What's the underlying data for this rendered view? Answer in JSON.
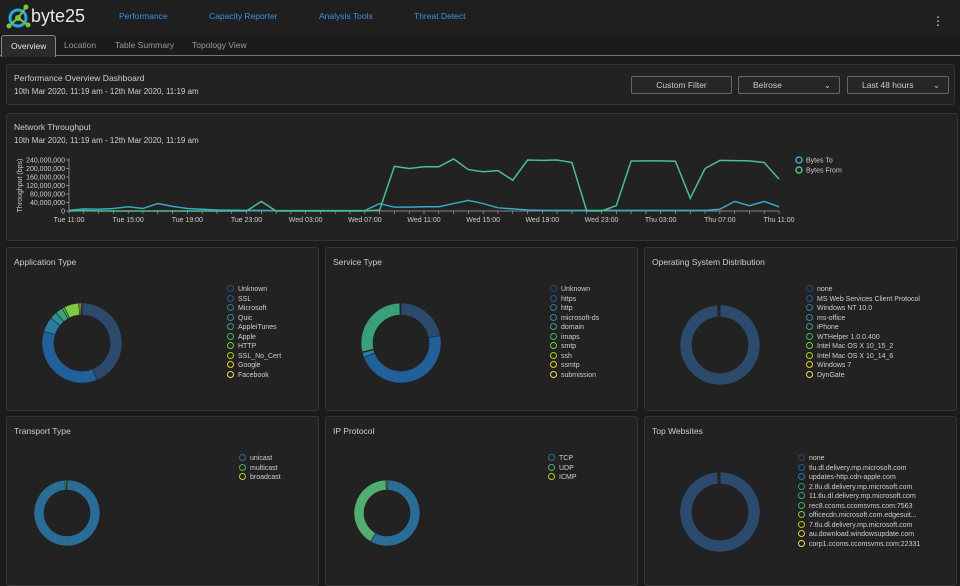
{
  "app": {
    "name": "byte25",
    "nav": [
      "Performance",
      "Capacity Reporter",
      "Analysis Tools",
      "Threat Detect"
    ],
    "menu_icon": "kebab-menu-icon"
  },
  "tabs": [
    "Overview",
    "Location",
    "Table Summary",
    "Topology View"
  ],
  "dashboard": {
    "title": "Performance Overview Dashboard",
    "range": "10th Mar 2020, 11:19 am - 12th Mar 2020, 11:19 am",
    "custom_filter": "Custom Filter",
    "location": "Belrose",
    "period": "Last 48 hours"
  },
  "colors": [
    "#2c4a6b",
    "#22609b",
    "#2a7aa2",
    "#2b9094",
    "#3aa07a",
    "#48b25a",
    "#7cc943",
    "#b6cc2a",
    "#e4d21e",
    "#f0dc5a"
  ],
  "chart_data": [
    {
      "type": "line",
      "title": "Network Throughput",
      "subtitle": "10th Mar 2020, 11:19 am - 12th Mar 2020, 11:19 am",
      "ylabel": "Throughput (bps)",
      "ylim": [
        0,
        240000000
      ],
      "yticks": [
        "0",
        "40,000,000",
        "80,000,000",
        "120,000,000",
        "160,000,000",
        "200,000,000",
        "240,000,000"
      ],
      "xticks": [
        "Tue 11:00",
        "Tue 15:00",
        "Tue 19:00",
        "Tue 23:00",
        "Wed 03:00",
        "Wed 07:00",
        "Wed 11:00",
        "Wed 15:00",
        "Wed 19:00",
        "Wed 23:00",
        "Thu 03:00",
        "Thu 07:00",
        "Thu 11:00"
      ],
      "legend_placement": "right",
      "series": [
        {
          "name": "Bytes To",
          "color": "#3aa6c8",
          "values": [
            3,
            10,
            8,
            12,
            20,
            12,
            35,
            22,
            12,
            8,
            5,
            4,
            3,
            3,
            2,
            2,
            2,
            2,
            2,
            2,
            2,
            35,
            18,
            18,
            20,
            20,
            35,
            50,
            35,
            15,
            10,
            5,
            3,
            3,
            3,
            3,
            3,
            3,
            3,
            3,
            3,
            3,
            3,
            3,
            8,
            45,
            25,
            45,
            20
          ]
        },
        {
          "name": "Bytes From",
          "color": "#4cc08a",
          "values": [
            0,
            2,
            0,
            0,
            0,
            0,
            0,
            0,
            0,
            0,
            0,
            0,
            0,
            45,
            0,
            0,
            0,
            0,
            0,
            0,
            0,
            5,
            210,
            200,
            208,
            208,
            245,
            195,
            185,
            190,
            145,
            240,
            238,
            240,
            228,
            0,
            0,
            25,
            235,
            236,
            236,
            234,
            60,
            200,
            238,
            237,
            236,
            228,
            150
          ]
        }
      ],
      "unit_scale": "values in millions of bps"
    },
    {
      "type": "pie",
      "title": "Application Type",
      "labels": [
        "Unknown",
        "SSL",
        "Microsoft",
        "Quic",
        "AppleiTunes",
        "Apple",
        "HTTP",
        "SSL_No_Cert",
        "Google",
        "Facebook"
      ],
      "values": [
        44,
        36,
        6,
        3,
        3,
        1,
        6,
        0.5,
        0.5,
        0.3
      ]
    },
    {
      "type": "pie",
      "title": "Service Type",
      "labels": [
        "Unknown",
        "https",
        "http",
        "microsoft-ds",
        "domain",
        "imaps",
        "smtp",
        "ssh",
        "ssmtp",
        "submission"
      ],
      "values": [
        22,
        47,
        2,
        0.3,
        28,
        0.1,
        0.1,
        0.1,
        0.1,
        0.1
      ]
    },
    {
      "type": "pie",
      "title": "Operating System Distribution",
      "labels": [
        "none",
        "MS Web Services Client Protocol",
        "Windows NT 10.0",
        "ms-office",
        "iPhone",
        "WTHelper 1.0.0.400",
        "Intel Mac OS X 10_15_2",
        "Intel Mac OS X 10_14_6",
        "Windows 7",
        "DynGate"
      ],
      "values": [
        99,
        0.3,
        0.1,
        0.1,
        0.1,
        0.1,
        0.1,
        0.1,
        0.05,
        0.05
      ]
    },
    {
      "type": "pie",
      "title": "Transport Type",
      "labels": [
        "unicast",
        "multicast",
        "broadcast"
      ],
      "values": [
        99,
        0.8,
        0.2
      ],
      "colors": [
        "#2a6e98",
        "#48b06a",
        "#c8cc22"
      ]
    },
    {
      "type": "pie",
      "title": "IP Protocol",
      "labels": [
        "TCP",
        "UDP",
        "ICMP"
      ],
      "values": [
        58,
        41,
        0.5
      ],
      "colors": [
        "#2a6e98",
        "#52ae70",
        "#c8cc22"
      ]
    },
    {
      "type": "pie",
      "title": "Top Websites",
      "labels": [
        "none",
        "tlu.dl.delivery.mp.microsoft.com",
        "updates-http.cdn-apple.com",
        "2.tlu.dl.delivery.mp.microsoft.com",
        "11.tlu.dl.delivery.mp.microsoft.com",
        "rec8.ccoms.ccomsvms.com:7563",
        "officecdn.microsoft.com.edgesuit...",
        "7.tlu.dl.delivery.mp.microsoft.com",
        "au.download.windowsupdate.com",
        "corp1.ccoms.ccomsvms.com:22331"
      ],
      "values": [
        99,
        0.3,
        0.1,
        0.1,
        0.1,
        0.1,
        0.1,
        0.1,
        0.05,
        0.05
      ]
    }
  ]
}
